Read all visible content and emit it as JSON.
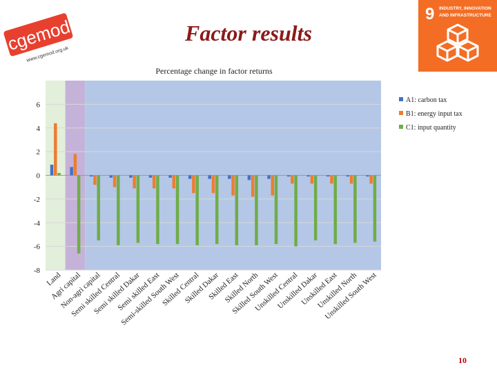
{
  "slide": {
    "title": "Factor results",
    "page_number": "10"
  },
  "logo": {
    "brand": "cgemod",
    "url": "www.cgemod.org.uk",
    "color": "#e8402f"
  },
  "sdg_badge": {
    "number": "9",
    "line1": "INDUSTRY, INNOVATION",
    "line2": "AND INFRASTRUCTURE",
    "color": "#f36d25"
  },
  "chart_data": {
    "type": "bar",
    "title": "Percentage change in factor returns",
    "xlabel": "",
    "ylabel": "",
    "ylim": [
      -8,
      8
    ],
    "yticks": [
      -8,
      -6,
      -4,
      -2,
      0,
      2,
      4,
      6
    ],
    "legend_position": "right",
    "categories": [
      "Land",
      "Agri capital",
      "Non-agri capital",
      "Semi skilled Central",
      "Semi skilled Dakar",
      "Semi skilled East",
      "Semi-skilled South West",
      "Skilled Central",
      "Skilled Dakar",
      "Skilled East",
      "Skilled North",
      "Skilled South West",
      "Unskilled Central",
      "Unskilled Dakar",
      "Unskilled East",
      "Unskilled North",
      "Unskilled South West"
    ],
    "series": [
      {
        "name": "A1: carbon tax",
        "color": "#4472c4",
        "values": [
          0.9,
          0.7,
          -0.1,
          -0.2,
          -0.2,
          -0.2,
          -0.2,
          -0.3,
          -0.3,
          -0.3,
          -0.4,
          -0.3,
          -0.1,
          -0.1,
          -0.1,
          -0.1,
          -0.1
        ]
      },
      {
        "name": "B1: energy input tax",
        "color": "#ed7d31",
        "values": [
          4.4,
          1.8,
          -0.8,
          -1.0,
          -1.1,
          -1.1,
          -1.1,
          -1.5,
          -1.5,
          -1.7,
          -1.8,
          -1.7,
          -0.7,
          -0.7,
          -0.7,
          -0.7,
          -0.7
        ]
      },
      {
        "name": "C1: input quantity",
        "color": "#70ad47",
        "values": [
          0.2,
          -6.6,
          -5.5,
          -5.9,
          -5.7,
          -5.8,
          -5.8,
          -5.9,
          -5.8,
          -5.9,
          -5.9,
          -5.8,
          -6.0,
          -5.5,
          -5.8,
          -5.7,
          -5.6
        ]
      }
    ],
    "background_bands": [
      {
        "from_category": 0,
        "to_category": 0,
        "color": "#e2efda"
      },
      {
        "from_category": 1,
        "to_category": 1,
        "color": "#c5b2d9"
      },
      {
        "from_category": 2,
        "to_category": 16,
        "color": "#b4c7e7"
      }
    ]
  }
}
